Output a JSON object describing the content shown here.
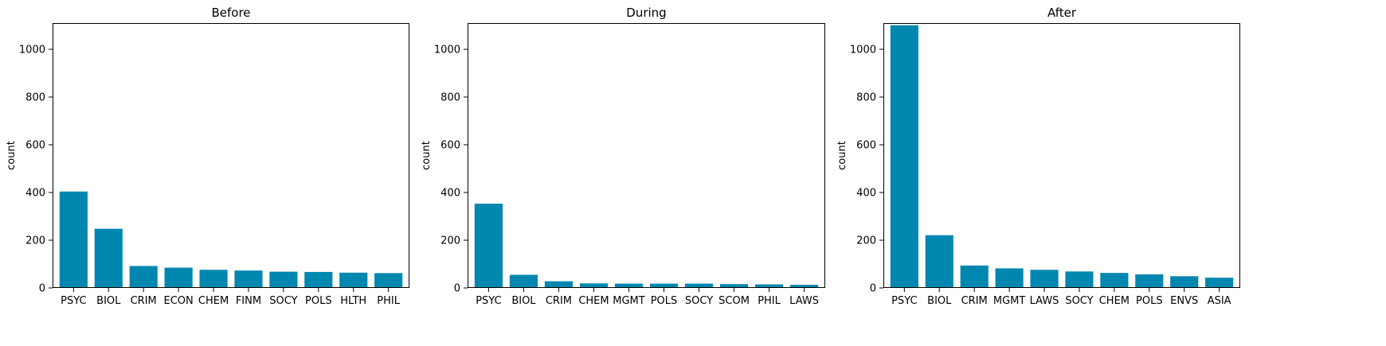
{
  "figure": {
    "bar_color": "#0087b0",
    "axis_color": "#000000",
    "background": "#ffffff"
  },
  "chart_data": [
    {
      "type": "bar",
      "title": "Before",
      "xlabel": "",
      "ylabel": "count",
      "ylim": [
        0,
        1110
      ],
      "yticks": [
        0,
        200,
        400,
        600,
        800,
        1000
      ],
      "grid": false,
      "categories": [
        "PSYC",
        "BIOL",
        "CRIM",
        "ECON",
        "CHEM",
        "FINM",
        "SOCY",
        "POLS",
        "HLTH",
        "PHIL"
      ],
      "values": [
        404,
        248,
        92,
        85,
        76,
        73,
        68,
        67,
        64,
        62
      ]
    },
    {
      "type": "bar",
      "title": "During",
      "xlabel": "",
      "ylabel": "count",
      "ylim": [
        0,
        1110
      ],
      "yticks": [
        0,
        200,
        400,
        600,
        800,
        1000
      ],
      "grid": false,
      "categories": [
        "PSYC",
        "BIOL",
        "CRIM",
        "CHEM",
        "MGMT",
        "POLS",
        "SOCY",
        "SCOM",
        "PHIL",
        "LAWS"
      ],
      "values": [
        353,
        55,
        28,
        19,
        18,
        18,
        18,
        16,
        15,
        13
      ]
    },
    {
      "type": "bar",
      "title": "After",
      "xlabel": "",
      "ylabel": "count",
      "ylim": [
        0,
        1110
      ],
      "yticks": [
        0,
        200,
        400,
        600,
        800,
        1000
      ],
      "grid": false,
      "categories": [
        "PSYC",
        "BIOL",
        "CRIM",
        "MGMT",
        "LAWS",
        "SOCY",
        "CHEM",
        "POLS",
        "ENVS",
        "ASIA"
      ],
      "values": [
        1101,
        221,
        94,
        82,
        76,
        69,
        63,
        57,
        49,
        43
      ]
    }
  ]
}
